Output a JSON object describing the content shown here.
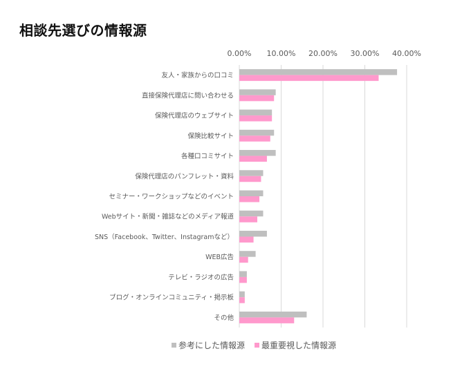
{
  "chart_data": {
    "type": "bar",
    "orientation": "horizontal",
    "title": "相談先選びの情報源",
    "xlabel": "",
    "ylabel": "",
    "xlim": [
      0,
      40
    ],
    "x_ticks": [
      "0.00%",
      "10.00%",
      "20.00%",
      "30.00%",
      "40.00%"
    ],
    "x_tick_values": [
      0,
      10,
      20,
      30,
      40
    ],
    "grid": true,
    "legend_position": "bottom",
    "categories": [
      "友人・家族からの口コミ",
      "直接保険代理店に問い合わせる",
      "保険代理店のウェブサイト",
      "保険比較サイト",
      "各種口コミサイト",
      "保険代理店のパンフレット・資料",
      "セミナー・ワークショップなどのイベント",
      "Webサイト・新聞・雑誌などのメディア報道",
      "SNS（Facebook、Twitter、Instagramなど）",
      "WEB広告",
      "テレビ・ラジオの広告",
      "ブログ・オンラインコミュニティ・掲示板",
      "その他"
    ],
    "series": [
      {
        "name": "参考にした情報源",
        "color": "#bfbfbf",
        "values": [
          37.7,
          8.7,
          7.8,
          8.3,
          8.7,
          5.7,
          5.7,
          5.7,
          6.6,
          3.9,
          1.8,
          1.3,
          16.1
        ]
      },
      {
        "name": "最重要視した情報源",
        "color": "#ff99cc",
        "values": [
          33.3,
          8.3,
          7.8,
          7.4,
          6.6,
          5.2,
          4.8,
          4.3,
          3.4,
          2.1,
          1.8,
          1.3,
          13.1
        ]
      }
    ]
  }
}
